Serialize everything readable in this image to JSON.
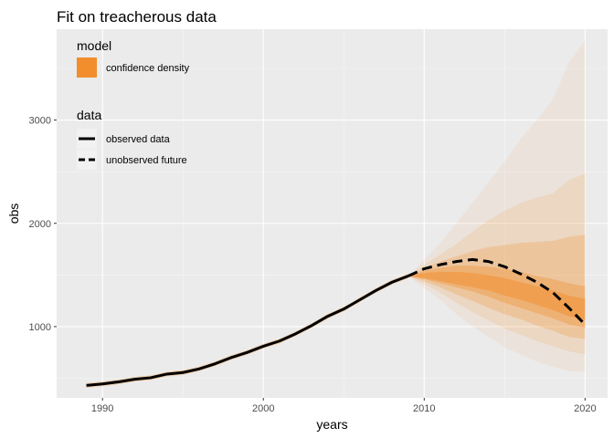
{
  "chart_data": {
    "type": "line",
    "title": "Fit on treacherous data",
    "xlabel": "years",
    "ylabel": "obs",
    "xlim": [
      1987.15,
      2021.4
    ],
    "ylim": [
      310,
      3880
    ],
    "x_ticks": [
      1990,
      2000,
      2010,
      2020
    ],
    "y_ticks": [
      1000,
      2000,
      3000
    ],
    "grid": true,
    "legend_position": "top-left",
    "legend": {
      "model_title": "model",
      "model_items": [
        {
          "label": "confidence density",
          "color": "#F28E2B"
        }
      ],
      "data_title": "data",
      "data_items": [
        {
          "label": "observed data",
          "style": "solid"
        },
        {
          "label": "unobserved future",
          "style": "dashed"
        }
      ]
    },
    "series": [
      {
        "name": "observed data",
        "style": "solid",
        "x": [
          1989,
          1990,
          1991,
          1992,
          1993,
          1994,
          1995,
          1996,
          1997,
          1998,
          1999,
          2000,
          2001,
          2002,
          2003,
          2004,
          2005,
          2006,
          2007,
          2008,
          2009
        ],
        "y": [
          430,
          445,
          465,
          490,
          505,
          540,
          555,
          590,
          640,
          700,
          750,
          810,
          860,
          930,
          1010,
          1100,
          1170,
          1260,
          1350,
          1430,
          1490
        ]
      },
      {
        "name": "unobserved future",
        "style": "dashed",
        "x": [
          2009,
          2010,
          2011,
          2012,
          2013,
          2014,
          2015,
          2016,
          2017,
          2018,
          2019,
          2020
        ],
        "y": [
          1490,
          1560,
          1600,
          1630,
          1650,
          1630,
          1580,
          1510,
          1430,
          1330,
          1180,
          1020
        ]
      }
    ],
    "confidence_bands": {
      "x": [
        2009,
        2010,
        2011,
        2012,
        2013,
        2014,
        2015,
        2016,
        2017,
        2018,
        2019,
        2020
      ],
      "base_color": "#F28E2B",
      "bands": [
        {
          "opacity": 0.08,
          "lower": [
            1490,
            1370,
            1260,
            1120,
            1000,
            900,
            800,
            730,
            660,
            610,
            570,
            560
          ],
          "upper": [
            1490,
            1650,
            1810,
            2000,
            2200,
            2400,
            2600,
            2820,
            3000,
            3200,
            3560,
            3770
          ]
        },
        {
          "opacity": 0.14,
          "lower": [
            1490,
            1410,
            1330,
            1230,
            1140,
            1060,
            980,
            920,
            860,
            810,
            760,
            730
          ],
          "upper": [
            1490,
            1600,
            1700,
            1800,
            1920,
            2030,
            2120,
            2200,
            2250,
            2290,
            2420,
            2480
          ]
        },
        {
          "opacity": 0.24,
          "lower": [
            1490,
            1440,
            1380,
            1310,
            1250,
            1180,
            1120,
            1070,
            1010,
            960,
            900,
            880
          ],
          "upper": [
            1490,
            1570,
            1630,
            1680,
            1730,
            1770,
            1790,
            1810,
            1820,
            1830,
            1870,
            1890
          ]
        },
        {
          "opacity": 0.36,
          "lower": [
            1490,
            1460,
            1420,
            1380,
            1340,
            1290,
            1230,
            1180,
            1130,
            1080,
            1020,
            990
          ],
          "upper": [
            1490,
            1540,
            1570,
            1590,
            1590,
            1580,
            1560,
            1530,
            1490,
            1460,
            1420,
            1390
          ]
        },
        {
          "opacity": 0.5,
          "lower": [
            1490,
            1470,
            1440,
            1410,
            1380,
            1350,
            1300,
            1260,
            1210,
            1160,
            1100,
            1070
          ],
          "upper": [
            1490,
            1520,
            1530,
            1530,
            1520,
            1500,
            1470,
            1430,
            1390,
            1350,
            1300,
            1270
          ]
        }
      ]
    },
    "history_band": {
      "x": [
        1989,
        1990,
        1991,
        1992,
        1993,
        1994,
        1995,
        1996,
        1997,
        1998,
        1999,
        2000,
        2001,
        2002,
        2003,
        2004,
        2005,
        2006,
        2007,
        2008,
        2009
      ],
      "half_width": 22,
      "opacity": 0.35
    }
  }
}
